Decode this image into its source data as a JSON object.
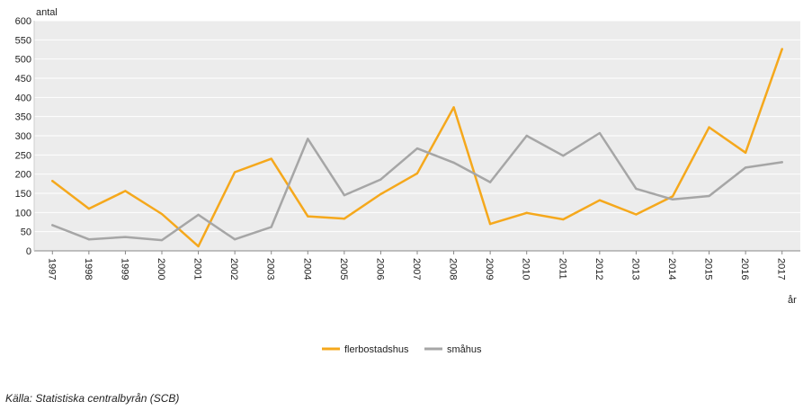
{
  "chart_data": {
    "type": "line",
    "title": "",
    "ylabel": "antal",
    "xlabel": "år",
    "ylim": [
      0,
      600
    ],
    "yticks": [
      0,
      50,
      100,
      150,
      200,
      250,
      300,
      350,
      400,
      450,
      500,
      550,
      600
    ],
    "grid": true,
    "legend_position": "bottom-center",
    "categories": [
      "1997",
      "1998",
      "1999",
      "2000",
      "2001",
      "2002",
      "2003",
      "2004",
      "2005",
      "2006",
      "2007",
      "2008",
      "2009",
      "2010",
      "2011",
      "2012",
      "2013",
      "2014",
      "2015",
      "2016",
      "2017"
    ],
    "series": [
      {
        "name": "flerbostadshus",
        "color": "#f5a81c",
        "values": [
          182,
          110,
          156,
          96,
          12,
          205,
          240,
          90,
          84,
          148,
          202,
          374,
          70,
          99,
          82,
          132,
          95,
          142,
          322,
          256,
          526
        ]
      },
      {
        "name": "småhus",
        "color": "#a6a6a6",
        "values": [
          67,
          30,
          36,
          28,
          94,
          30,
          62,
          292,
          145,
          186,
          267,
          230,
          179,
          300,
          248,
          307,
          162,
          134,
          143,
          217,
          231
        ]
      }
    ]
  },
  "source": "Källa: Statistiska centralbyrån (SCB)"
}
